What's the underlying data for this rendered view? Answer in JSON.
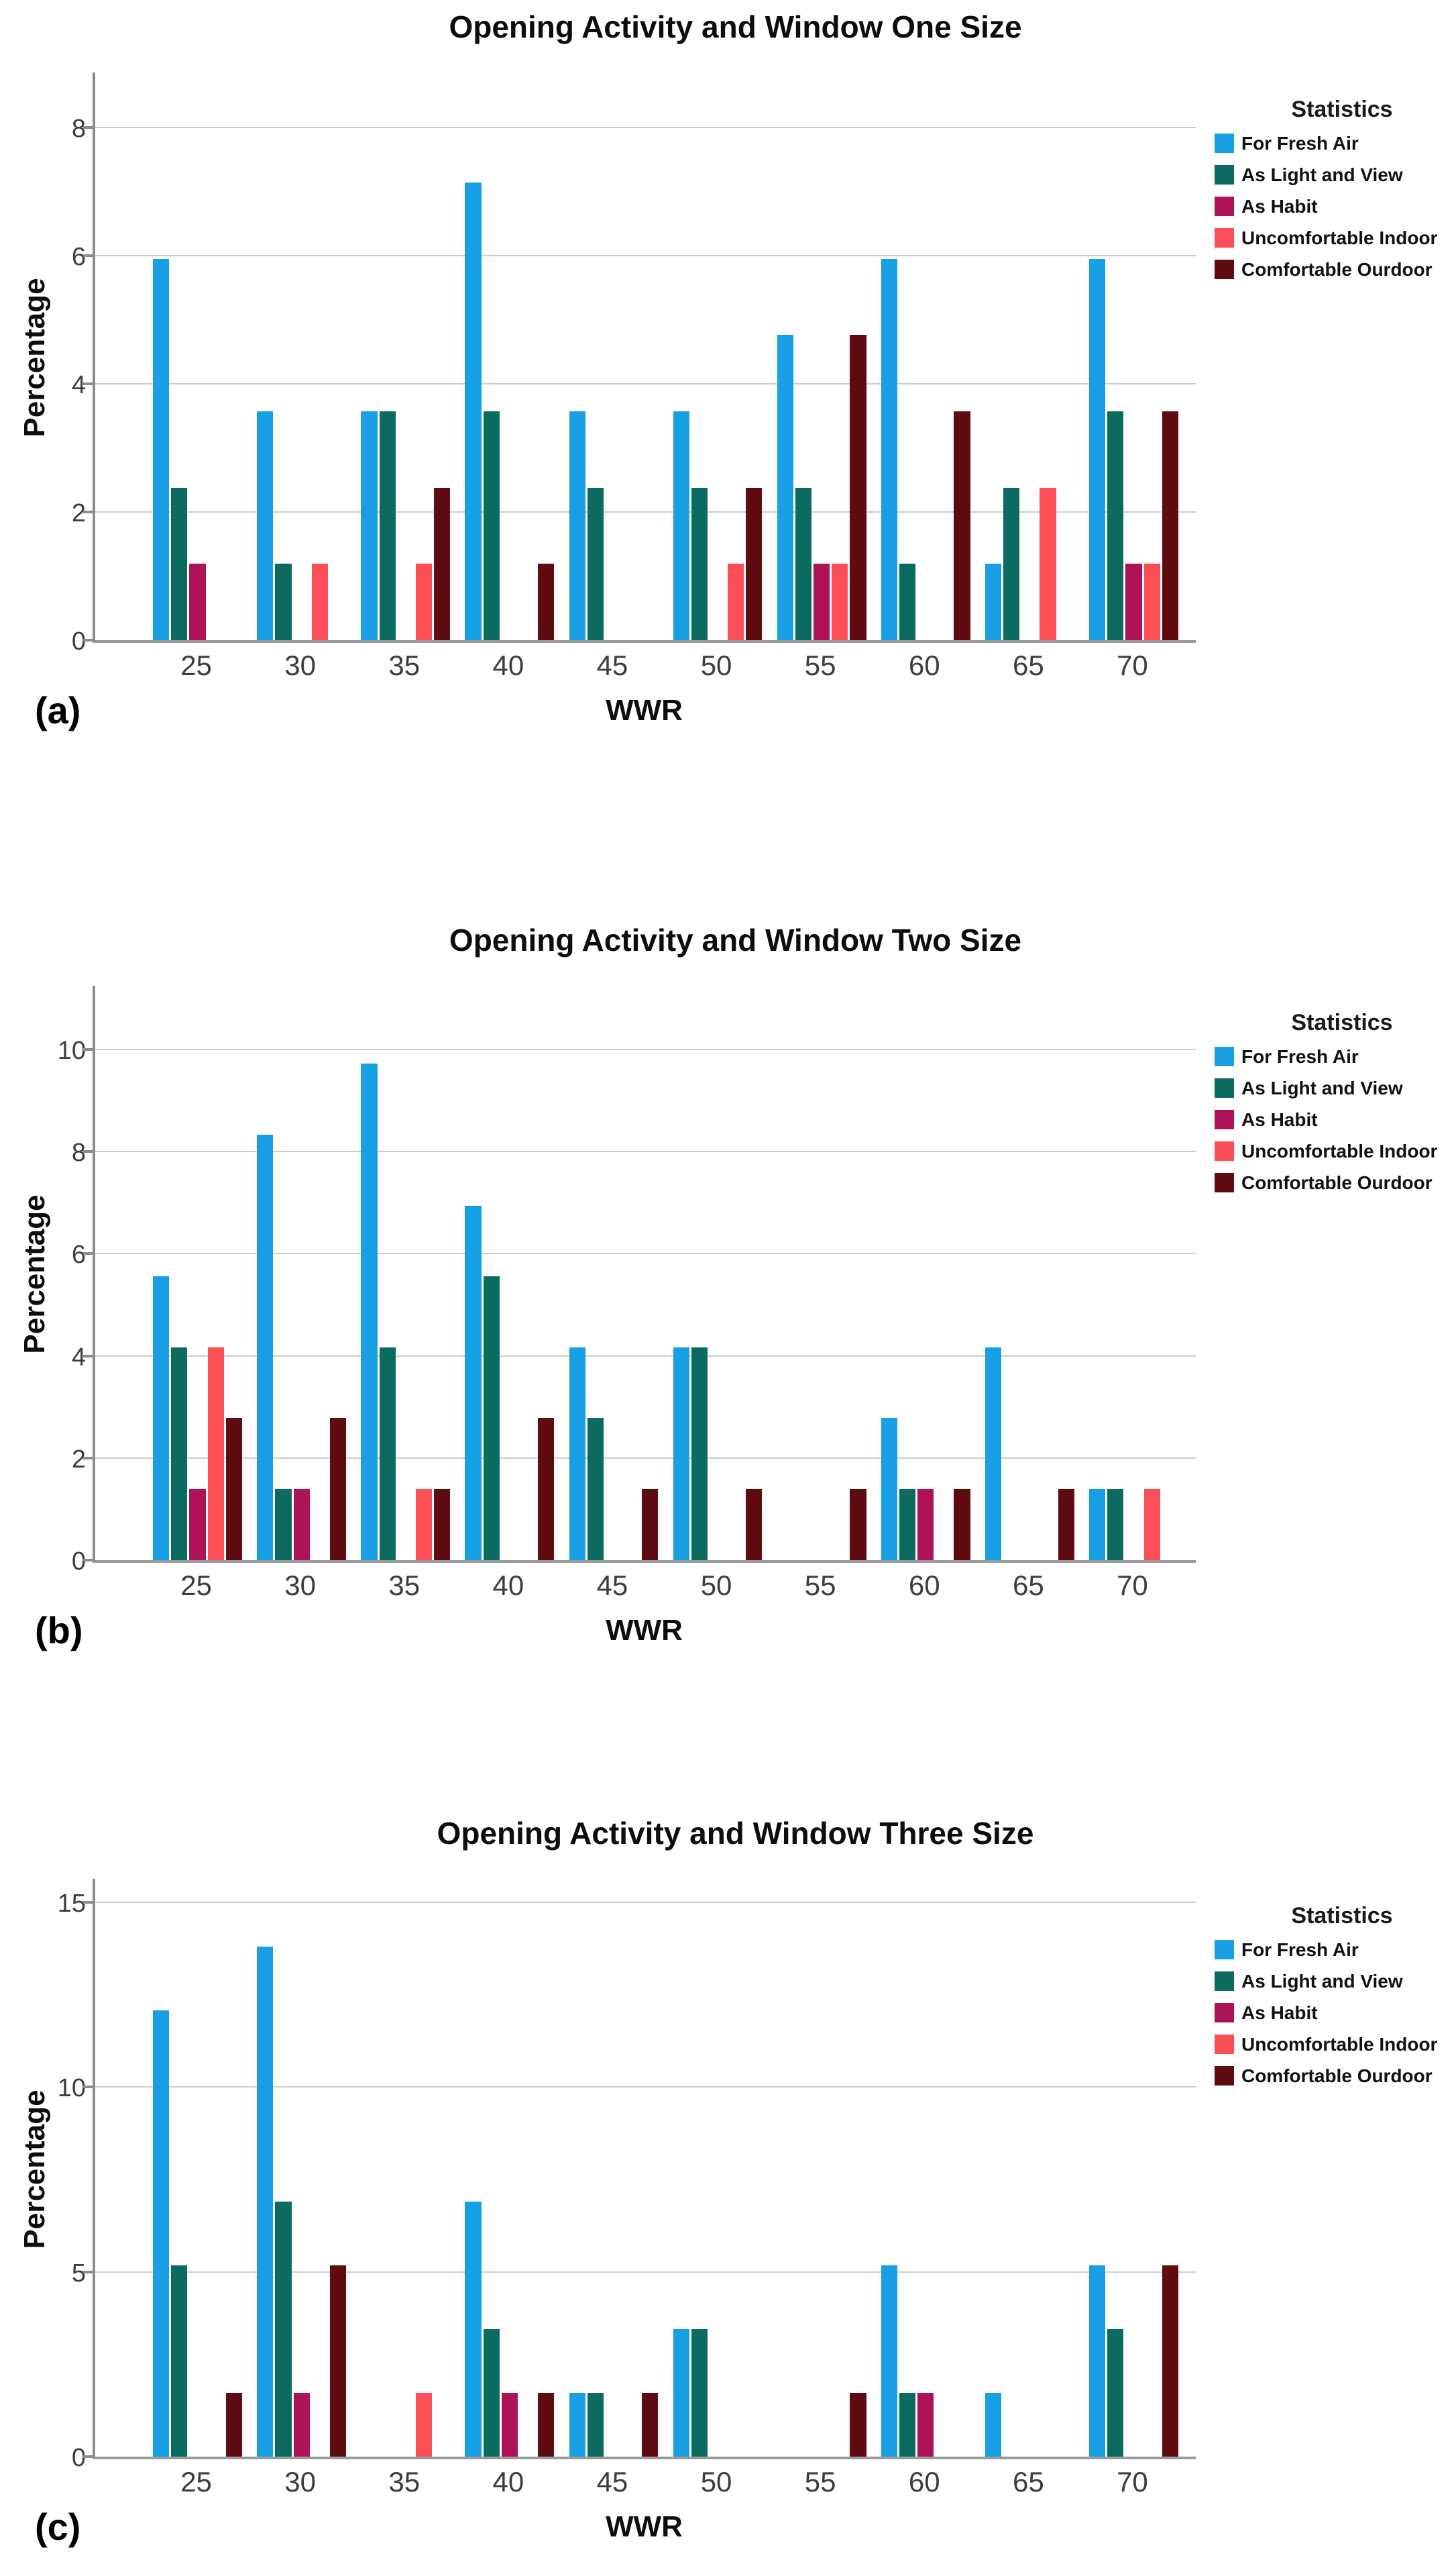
{
  "chart_data": [
    {
      "type": "bar",
      "panel_label": "(a)",
      "title": "Opening Activity and Window One Size",
      "ylabel": "Percentage",
      "xlabel": "WWR",
      "legend_title": "Statistics",
      "legend_position": "top-right",
      "grid": true,
      "yticks": [
        0,
        2,
        4,
        6,
        8
      ],
      "ymax": 8.9,
      "categories": [
        "25",
        "30",
        "35",
        "40",
        "45",
        "50",
        "55",
        "60",
        "65",
        "70"
      ],
      "series": [
        {
          "name": "For Fresh Air",
          "color": "#189FE4",
          "values": [
            5.95,
            3.57,
            3.57,
            7.14,
            3.57,
            3.57,
            4.76,
            5.95,
            1.19,
            5.95
          ]
        },
        {
          "name": "As Light and View",
          "color": "#0C6B60",
          "values": [
            2.38,
            1.19,
            3.57,
            3.57,
            2.38,
            2.38,
            2.38,
            1.19,
            2.38,
            3.57
          ]
        },
        {
          "name": "As Habit",
          "color": "#AE1257",
          "values": [
            1.19,
            0,
            0,
            0,
            0,
            0,
            1.19,
            0,
            0,
            1.19
          ]
        },
        {
          "name": "Uncomfortable Indoor",
          "color": "#FB4E57",
          "values": [
            0,
            1.19,
            1.19,
            0,
            0,
            1.19,
            1.19,
            0,
            2.38,
            1.19
          ]
        },
        {
          "name": "Comfortable Ourdoor",
          "color": "#5F0B10",
          "values": [
            0,
            0,
            2.38,
            1.19,
            0,
            2.38,
            4.76,
            3.57,
            0,
            3.57
          ]
        }
      ]
    },
    {
      "type": "bar",
      "panel_label": "(b)",
      "title": "Opening Activity and Window Two Size",
      "ylabel": "Percentage",
      "xlabel": "WWR",
      "legend_title": "Statistics",
      "legend_position": "top-right",
      "grid": true,
      "yticks": [
        0,
        2,
        4,
        6,
        8,
        10
      ],
      "ymax": 11.3,
      "categories": [
        "25",
        "30",
        "35",
        "40",
        "45",
        "50",
        "55",
        "60",
        "65",
        "70"
      ],
      "series": [
        {
          "name": "For Fresh Air",
          "color": "#189FE4",
          "values": [
            5.56,
            8.33,
            9.72,
            6.94,
            4.17,
            4.17,
            0,
            2.78,
            4.17,
            1.39
          ]
        },
        {
          "name": "As Light and View",
          "color": "#0C6B60",
          "values": [
            4.17,
            1.39,
            4.17,
            5.56,
            2.78,
            4.17,
            0,
            1.39,
            0,
            1.39
          ]
        },
        {
          "name": "As Habit",
          "color": "#AE1257",
          "values": [
            1.39,
            1.39,
            0,
            0,
            0,
            0,
            0,
            1.39,
            0,
            0
          ]
        },
        {
          "name": "Uncomfortable Indoor",
          "color": "#FB4E57",
          "values": [
            4.17,
            0,
            1.39,
            0,
            0,
            0,
            0,
            0,
            0,
            1.39
          ]
        },
        {
          "name": "Comfortable Ourdoor",
          "color": "#5F0B10",
          "values": [
            2.78,
            2.78,
            1.39,
            2.78,
            1.39,
            1.39,
            1.39,
            1.39,
            1.39,
            0
          ]
        }
      ]
    },
    {
      "type": "bar",
      "panel_label": "(c)",
      "title": "Opening Activity and Window Three Size",
      "ylabel": "Percentage",
      "xlabel": "WWR",
      "legend_title": "Statistics",
      "legend_position": "top-right",
      "grid": true,
      "yticks": [
        0,
        5,
        10,
        15
      ],
      "ymax": 15.7,
      "categories": [
        "25",
        "30",
        "35",
        "40",
        "45",
        "50",
        "55",
        "60",
        "65",
        "70"
      ],
      "series": [
        {
          "name": "For Fresh Air",
          "color": "#189FE4",
          "values": [
            12.07,
            13.79,
            0,
            6.9,
            1.72,
            3.45,
            0,
            5.17,
            1.72,
            5.17
          ]
        },
        {
          "name": "As Light and View",
          "color": "#0C6B60",
          "values": [
            5.17,
            6.9,
            0,
            3.45,
            1.72,
            3.45,
            0,
            1.72,
            0,
            3.45
          ]
        },
        {
          "name": "As Habit",
          "color": "#AE1257",
          "values": [
            0,
            1.72,
            0,
            1.72,
            0,
            0,
            0,
            1.72,
            0,
            0
          ]
        },
        {
          "name": "Uncomfortable Indoor",
          "color": "#FB4E57",
          "values": [
            0,
            0,
            1.72,
            0,
            0,
            0,
            0,
            0,
            0,
            0
          ]
        },
        {
          "name": "Comfortable Ourdoor",
          "color": "#5F0B10",
          "values": [
            1.72,
            5.17,
            0,
            1.72,
            1.72,
            0,
            1.72,
            0,
            0,
            5.17
          ]
        }
      ]
    }
  ]
}
